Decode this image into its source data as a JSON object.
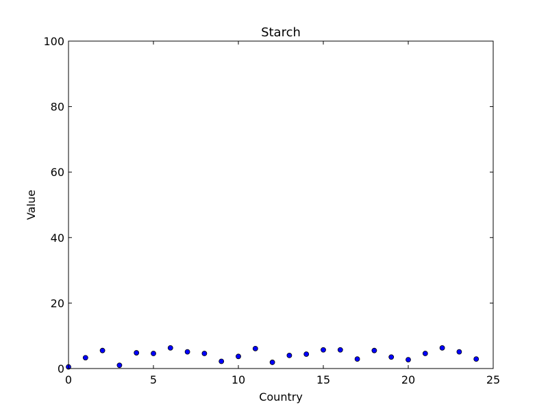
{
  "chart_data": {
    "type": "scatter",
    "title": "Starch",
    "xlabel": "Country",
    "ylabel": "Value",
    "xlim": [
      0,
      25
    ],
    "ylim": [
      0,
      100
    ],
    "grid": false,
    "marker_color": "#0000ff",
    "x_ticks": [
      0,
      5,
      10,
      15,
      20,
      25
    ],
    "y_ticks": [
      0,
      20,
      40,
      60,
      80,
      100
    ],
    "x": [
      0,
      1,
      2,
      3,
      4,
      5,
      6,
      7,
      8,
      9,
      10,
      11,
      12,
      13,
      14,
      15,
      16,
      17,
      18,
      19,
      20,
      21,
      22,
      23,
      24
    ],
    "y": [
      0.5,
      3.3,
      5.5,
      1.0,
      4.8,
      4.6,
      6.3,
      5.1,
      4.6,
      2.2,
      3.7,
      6.1,
      1.9,
      4.0,
      4.4,
      5.7,
      5.7,
      2.9,
      5.5,
      3.5,
      2.7,
      4.6,
      6.3,
      5.1,
      2.9
    ]
  }
}
